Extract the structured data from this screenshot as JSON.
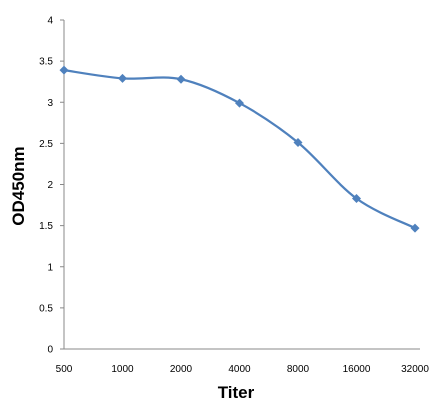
{
  "chart_data": {
    "type": "line",
    "title": "",
    "xlabel": "Titer",
    "ylabel": "OD450nm",
    "categories": [
      "500",
      "1000",
      "2000",
      "4000",
      "8000",
      "16000",
      "32000"
    ],
    "series": [
      {
        "values": [
          3.39,
          3.29,
          3.28,
          2.99,
          2.51,
          1.83,
          1.47
        ],
        "color": "#4F81BD",
        "marker": "diamond",
        "smooth": true
      }
    ],
    "ylim": [
      0,
      4
    ],
    "yticks": [
      "0",
      "0.5",
      "1",
      "1.5",
      "2",
      "2.5",
      "3",
      "3.5",
      "4"
    ],
    "grid": false,
    "legend": "none",
    "axis_color": "#888888"
  }
}
